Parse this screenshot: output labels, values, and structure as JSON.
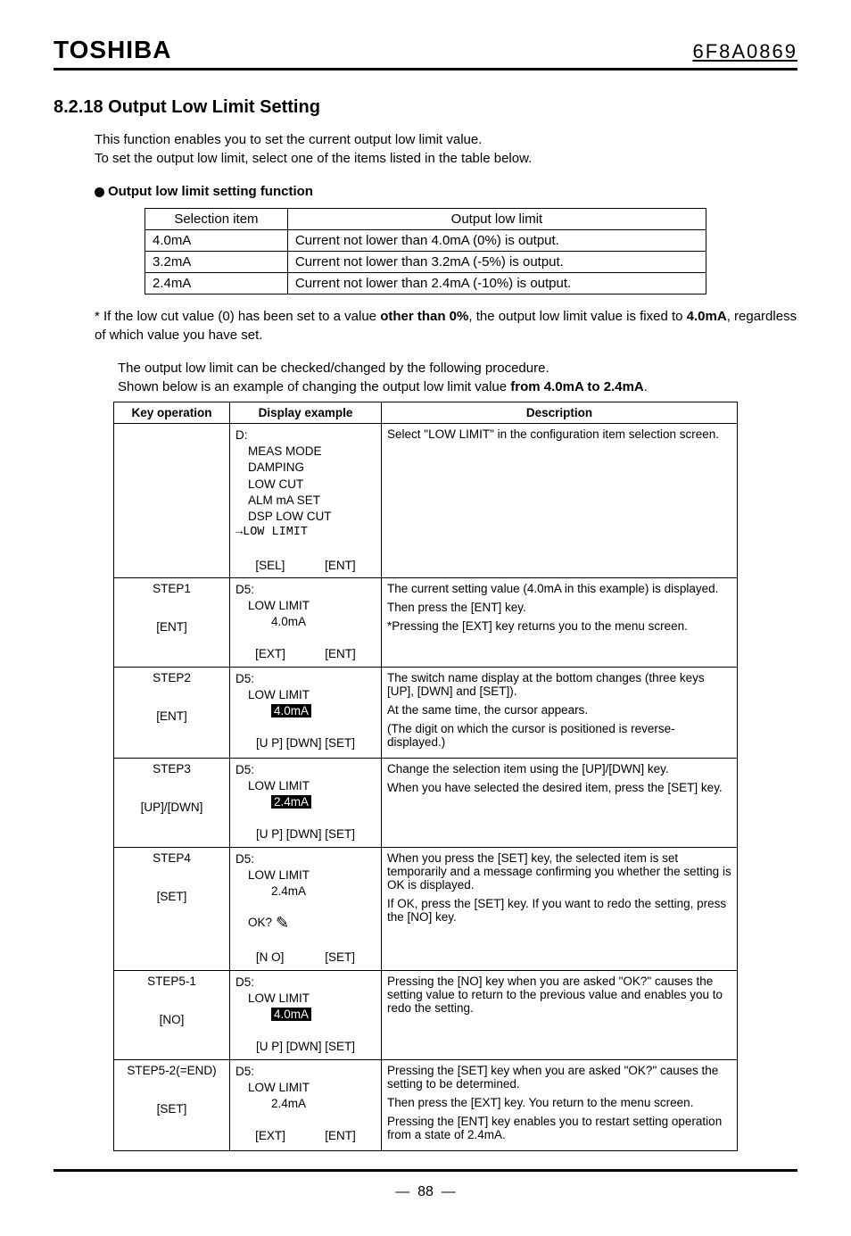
{
  "header": {
    "brand": "TOSHIBA",
    "docnum": "6F8A0869"
  },
  "section": {
    "number": "8.2.18",
    "title": "Output Low Limit Setting",
    "intro1": "This function enables you to set the current output low limit value.",
    "intro2": "To set the output low limit, select one of the items listed in the table below.",
    "sub": "Output low limit setting function"
  },
  "func_table": {
    "h1": "Selection item",
    "h2": "Output low limit",
    "rows": [
      {
        "a": "4.0mA",
        "b": "Current not lower than 4.0mA (0%) is output."
      },
      {
        "a": "3.2mA",
        "b": "Current not lower than 3.2mA (-5%) is output."
      },
      {
        "a": "2.4mA",
        "b": "Current not lower than 2.4mA (-10%) is output."
      }
    ]
  },
  "note": {
    "pre": "* If the low cut value (0) has been set to a value ",
    "bold1": "other than 0%",
    "mid": ", the output low limit value is fixed to ",
    "bold2": "4.0mA",
    "post": ", regardless of which value you have set."
  },
  "mid_text": {
    "l1": "The output low limit can be checked/changed by the following procedure.",
    "l2_a": "Shown below is an example of changing the output low limit value ",
    "l2_b": "from 4.0mA to 2.4mA",
    "l2_c": "."
  },
  "steps_table": {
    "h1": "Key operation",
    "h2": "Display example",
    "h3": "Description"
  },
  "row0": {
    "d_hdr": "D:",
    "m1": "MEAS MODE",
    "m2": "DAMPING",
    "m3": "LOW CUT",
    "m4": "ALM mA SET",
    "m5": "DSP LOW CUT",
    "m6": "→LOW LIMIT",
    "b1": "[SEL]",
    "b2": "[ENT]",
    "desc": "Select \"LOW LIMIT\" in the configuration item selection screen."
  },
  "row1": {
    "step": "STEP1",
    "key": "[ENT]",
    "d_hdr": "D5:",
    "l1": "LOW LIMIT",
    "val": "4.0mA",
    "b1": "[EXT]",
    "b2": "[ENT]",
    "d1": "The current setting value (4.0mA in this example) is displayed.",
    "d2": "Then press the [ENT] key.",
    "d3": "*Pressing the [EXT] key returns you to the menu screen."
  },
  "row2": {
    "step": "STEP2",
    "key": "[ENT]",
    "d_hdr": "D5:",
    "l1": "LOW LIMIT",
    "val": "4.0mA",
    "b": "[U P] [DWN] [SET]",
    "d1": "The switch name display at the bottom changes (three keys [UP], [DWN] and [SET]).",
    "d2": "At the same time, the cursor appears.",
    "d3": "(The digit on which the cursor is positioned is reverse-displayed.)"
  },
  "row3": {
    "step": "STEP3",
    "key": "[UP]/[DWN]",
    "d_hdr": "D5:",
    "l1": "LOW LIMIT",
    "val": "2.4mA",
    "b": "[U P] [DWN] [SET]",
    "d1": "Change the selection item using the [UP]/[DWN] key.",
    "d2": "When you have selected the desired item, press the [SET] key."
  },
  "row4": {
    "step": "STEP4",
    "key": "[SET]",
    "d_hdr": "D5:",
    "l1": "LOW LIMIT",
    "val": "2.4mA",
    "ok": "OK?",
    "b1": "[N O]",
    "b2": "[SET]",
    "d1": "When you press the [SET] key, the selected item is set temporarily and a message confirming you whether the setting is OK is displayed.",
    "d2": "If OK, press the [SET] key. If you want to redo the setting, press the [NO] key."
  },
  "row5": {
    "step": "STEP5-1",
    "key": "[NO]",
    "d_hdr": "D5:",
    "l1": "LOW LIMIT",
    "val": "4.0mA",
    "b": "[U P] [DWN] [SET]",
    "d1": "Pressing the [NO] key when you are asked \"OK?\" causes the setting value to return to the previous value and enables you to redo the setting."
  },
  "row6": {
    "step": "STEP5-2(=END)",
    "key": "[SET]",
    "d_hdr": "D5:",
    "l1": "LOW LIMIT",
    "val": "2.4mA",
    "b1": "[EXT]",
    "b2": "[ENT]",
    "d1": "Pressing the [SET] key when you are asked \"OK?\" causes the setting to be determined.",
    "d2": "Then press the [EXT] key. You return to the menu screen.",
    "d3": "Pressing the [ENT] key enables you to restart setting operation from a state of 2.4mA."
  },
  "footer": {
    "page": "88"
  }
}
